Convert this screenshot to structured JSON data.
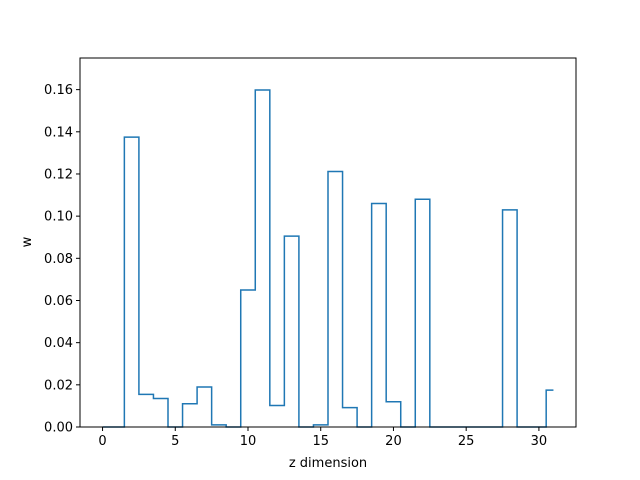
{
  "chart_data": {
    "type": "line",
    "drawstyle": "steps-mid",
    "title": "",
    "xlabel": "z dimension",
    "ylabel": "w",
    "xlim": [
      -1.55,
      32.55
    ],
    "ylim": [
      0.0,
      0.175
    ],
    "xticks": [
      0,
      5,
      10,
      15,
      20,
      25,
      30
    ],
    "yticks": [
      0.0,
      0.02,
      0.04,
      0.06,
      0.08,
      0.1,
      0.12,
      0.14,
      0.16
    ],
    "ytick_labels": [
      "0.00",
      "0.02",
      "0.04",
      "0.06",
      "0.08",
      "0.10",
      "0.12",
      "0.14",
      "0.16"
    ],
    "xtick_labels": [
      "0",
      "5",
      "10",
      "15",
      "20",
      "25",
      "30"
    ],
    "grid": false,
    "series": [
      {
        "color": "#1f77b4",
        "x": [
          0,
          1,
          2,
          3,
          4,
          5,
          6,
          7,
          8,
          9,
          10,
          11,
          12,
          13,
          14,
          15,
          16,
          17,
          18,
          19,
          20,
          21,
          22,
          23,
          24,
          25,
          26,
          27,
          28,
          29,
          30,
          31
        ],
        "values": [
          0.0,
          0.0,
          0.1375,
          0.0155,
          0.0135,
          0.0,
          0.011,
          0.019,
          0.001,
          0.0,
          0.065,
          0.1598,
          0.0102,
          0.0905,
          0.0,
          0.001,
          0.1212,
          0.0092,
          0.0,
          0.106,
          0.012,
          0.0,
          0.108,
          0.0,
          0.0,
          0.0,
          0.0,
          0.0,
          0.103,
          0.0,
          0.0,
          0.0175
        ]
      }
    ]
  }
}
